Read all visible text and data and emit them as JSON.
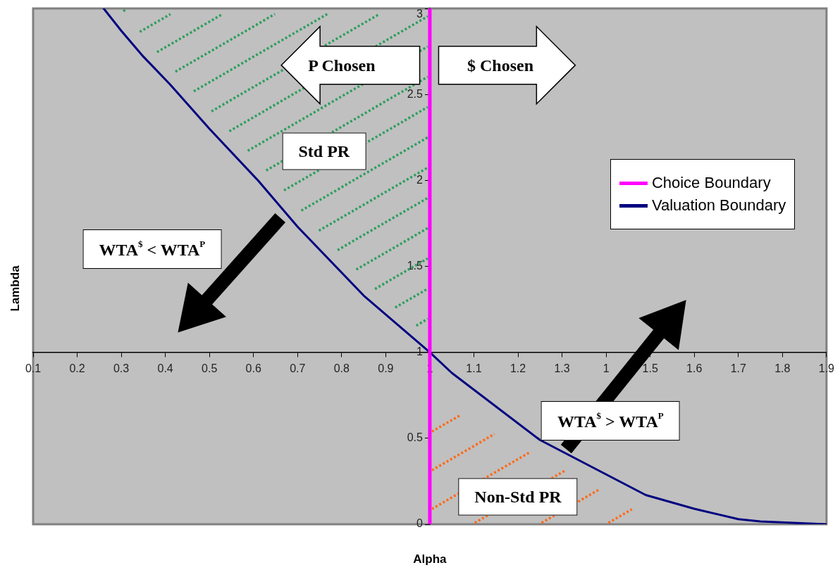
{
  "chart_data": {
    "type": "line",
    "xlabel": "Alpha",
    "ylabel": "Lambda",
    "xlim": [
      0.1,
      1.9
    ],
    "xticks": [
      0.1,
      0.2,
      0.3,
      0.4,
      0.5,
      0.6,
      0.7,
      0.8,
      0.9,
      1,
      1.1,
      1.2,
      1.3,
      {
        "value": 1.4,
        "label": "1"
      },
      1.5,
      1.6,
      1.7,
      1.8,
      1.9
    ],
    "ylim": [
      0,
      3
    ],
    "yticks": [
      0,
      0.5,
      1,
      1.5,
      2,
      2.5,
      3
    ],
    "legend": "right",
    "marker": "none",
    "line_style": "solid",
    "series": [
      {
        "name": "Choice Boundary",
        "color": "#ff00ff",
        "x": [
          1,
          1
        ],
        "values": [
          0,
          3
        ]
      },
      {
        "name": "Valuation Boundary",
        "color": "#000080",
        "x": [
          0.26,
          0.3,
          0.35,
          0.41,
          0.5,
          0.61,
          0.7,
          0.85,
          1.0,
          1.05,
          1.25,
          1.49,
          1.6,
          1.7,
          1.75,
          1.9
        ],
        "values": [
          3.0,
          2.87,
          2.72,
          2.56,
          2.3,
          2.0,
          1.73,
          1.33,
          1.0,
          0.88,
          0.49,
          0.17,
          0.09,
          0.03,
          0.016,
          0
        ]
      }
    ],
    "annotations": [
      "P Chosen",
      "$ Chosen",
      "Std PR",
      "Non-Std PR",
      "WTA$^{$}$ < WTA$^{P}$",
      "WTA$^{$}$ > WTA$^{P}$"
    ]
  }
}
